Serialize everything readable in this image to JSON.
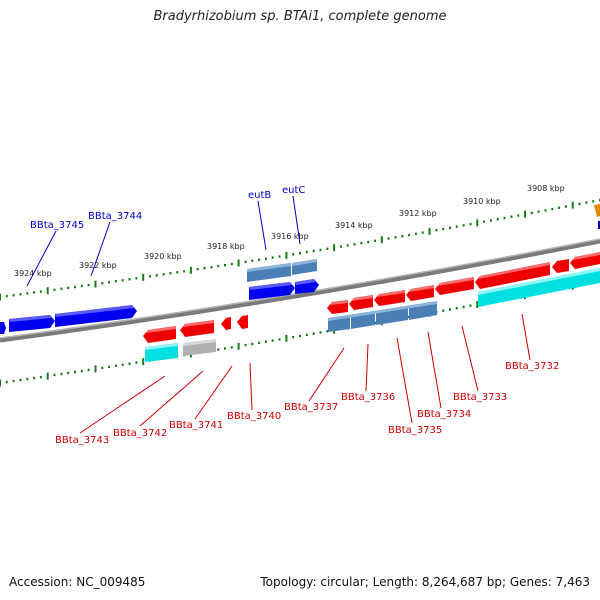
{
  "title": "Bradyrhizobium sp. BTAi1, complete genome",
  "footer": {
    "accession": "Accession: NC_009485",
    "summary": "Topology: circular; Length: 8,264,687 bp; Genes: 7,463"
  },
  "colors": {
    "backbone": "#808080",
    "ruler_ticks": "#1a7a1a",
    "forward_gene": "#0000ee",
    "rna_gene": "#4a7fb5",
    "reverse_gene": "#ee0000",
    "reverse_product": "#00e0e0",
    "pseudo_product": "#b0b0b0",
    "orange_feature": "#e08a00",
    "label_blue": "#0000cc",
    "label_red": "#cc0000"
  },
  "ruler": {
    "unit": "kbp",
    "outer_ticks": [
      "3924 kbp",
      "3922 kbp",
      "3920 kbp",
      "3918 kbp",
      "3916 kbp",
      "3914 kbp",
      "3912 kbp",
      "3910 kbp",
      "3908 kbp"
    ]
  },
  "gene_labels_top": [
    "BBta_3745",
    "BBta_3744",
    "eutB",
    "eutC"
  ],
  "gene_labels_bottom": [
    "BBta_3743",
    "BBta_3742",
    "BBta_3741",
    "BBta_3740",
    "BBta_3737",
    "BBta_3736",
    "BBta_3735",
    "BBta_3734",
    "BBta_3733",
    "BBta_3732"
  ]
}
